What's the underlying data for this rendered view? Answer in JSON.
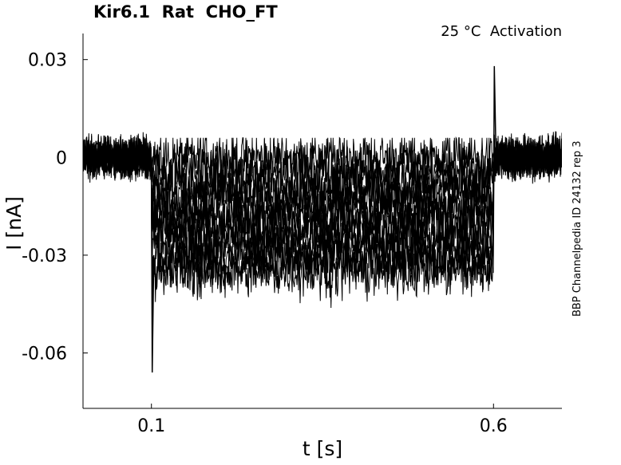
{
  "chart_data": {
    "type": "line",
    "title": "Kir6.1  Rat  CHO_FT",
    "annotation": "25 °C  Activation",
    "side_label": "BBP Channelpedia ID 24132 rep 3",
    "xlabel": "t [s]",
    "ylabel": "I [nA]",
    "xlim": [
      0.0,
      0.7
    ],
    "ylim": [
      -0.077,
      0.038
    ],
    "xticks": [
      0.1,
      0.6
    ],
    "xtick_labels": [
      "0.1",
      "0.6"
    ],
    "yticks": [
      0.03,
      0,
      -0.03,
      -0.06
    ],
    "ytick_labels": [
      "0.03",
      "0",
      "-0.03",
      "-0.06"
    ],
    "grid": false,
    "legend": "none",
    "line_color": "#000000",
    "step_start": 0.1,
    "step_end": 0.6,
    "baseline_mean": 0.0,
    "baseline_noise": 0.006,
    "step_levels": [
      0.0,
      -0.004,
      -0.008,
      -0.011,
      -0.014,
      -0.017,
      -0.02,
      -0.023,
      -0.026,
      -0.029,
      -0.032,
      -0.035
    ],
    "step_noise": 0.008,
    "onset_transient_min": -0.066,
    "offset_transient_max": 0.028
  }
}
